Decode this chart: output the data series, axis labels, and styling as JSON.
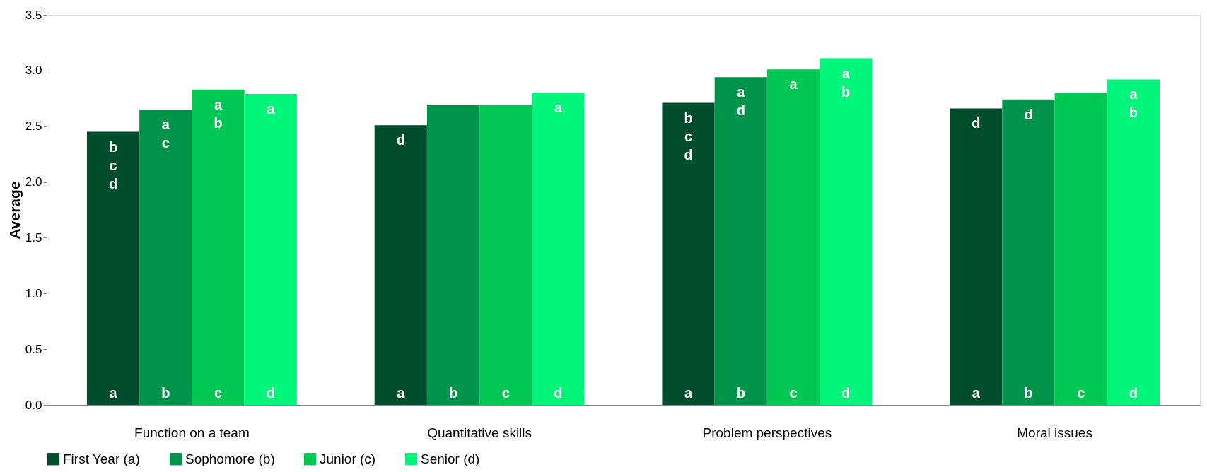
{
  "chart_data": {
    "type": "bar",
    "ylabel": "Average",
    "categories": [
      "Function on a team",
      "Quantitative skills",
      "Problem perspectives",
      "Moral issues"
    ],
    "series": [
      {
        "name": "First Year (a)",
        "color": "#004d2e",
        "values": [
          2.45,
          2.51,
          2.71,
          2.66
        ],
        "value_labels": [
          "b\nc\nd",
          "d",
          "b\nc\nd",
          "d"
        ]
      },
      {
        "name": "Sophomore (b)",
        "color": "#00944a",
        "values": [
          2.65,
          2.69,
          2.94,
          2.74
        ],
        "value_labels": [
          "a\nc",
          null,
          "a\nd",
          "d"
        ]
      },
      {
        "name": "Junior (c)",
        "color": "#00c853",
        "values": [
          2.83,
          2.69,
          3.01,
          2.8
        ],
        "value_labels": [
          "a\nb",
          null,
          "a",
          null
        ]
      },
      {
        "name": "Senior (d)",
        "color": "#00f57a",
        "values": [
          2.79,
          2.8,
          3.11,
          2.92
        ],
        "value_labels": [
          "a",
          "a",
          "a\nb",
          "a\nb"
        ]
      }
    ],
    "ylim": [
      0,
      3.5
    ],
    "yticks": [
      {
        "value": 0,
        "label": "0.0"
      },
      {
        "value": 0.5,
        "label": "0.5"
      },
      {
        "value": 1,
        "label": "1.0"
      },
      {
        "value": 1.5,
        "label": "1.5"
      },
      {
        "value": 2,
        "label": "2.0"
      },
      {
        "value": 2.5,
        "label": "2.5"
      },
      {
        "value": 3,
        "label": "3.0"
      },
      {
        "value": 3.5,
        "label": "3.5"
      }
    ],
    "grid": false,
    "legend": "bottom",
    "annotations": [
      "a",
      "b",
      "c",
      "d",
      "a",
      "b",
      "c",
      "d",
      "a",
      "b",
      "c",
      "d",
      "a",
      "b",
      "c",
      "d"
    ]
  }
}
